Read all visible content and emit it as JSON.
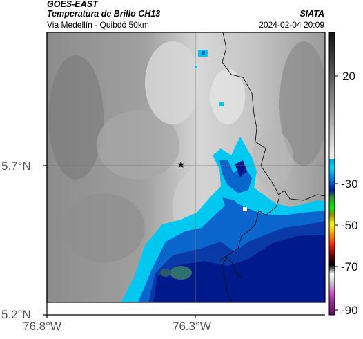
{
  "header": {
    "satellite": "GOES-EAST",
    "product": "Temperatura de Brillo CH13",
    "location": "Via Medellín - Quibdó 50km",
    "organization": "SIATA",
    "timestamp": "2024-02-04 20:09"
  },
  "axes": {
    "lon_ticks": [
      "76.8°W",
      "76.3°W"
    ],
    "lat_ticks": [
      "5.7°N",
      "5.2°N"
    ]
  },
  "colorbar": {
    "labels": [
      "20",
      "-30",
      "-50",
      "-70",
      "-90"
    ]
  },
  "marker": {
    "symbol": "★",
    "name": "star-marker"
  }
}
